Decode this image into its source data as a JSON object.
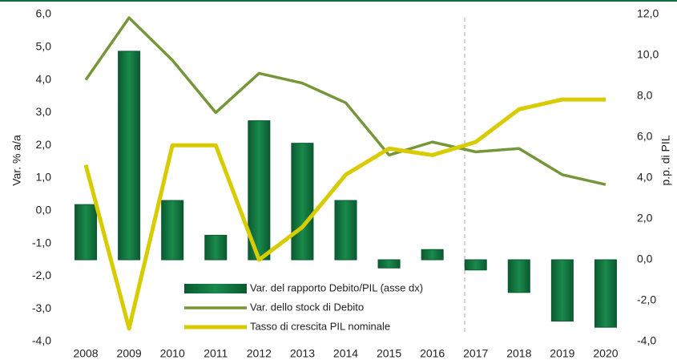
{
  "chart_data": {
    "type": "bar",
    "categories": [
      "2008",
      "2009",
      "2010",
      "2011",
      "2012",
      "2013",
      "2014",
      "2015",
      "2016",
      "2017",
      "2018",
      "2019",
      "2020"
    ],
    "series": [
      {
        "name": "Var. del rapporto Debito/PIL (asse dx)",
        "type": "bar",
        "axis": "y2",
        "color": "#0f6e3c",
        "values": [
          2.7,
          10.2,
          2.9,
          1.2,
          6.8,
          5.7,
          2.9,
          -0.4,
          0.5,
          -0.5,
          -1.6,
          -3.0,
          -3.3
        ]
      },
      {
        "name": "Var. dello stock di Debito",
        "type": "line",
        "color": "#76963a",
        "values": [
          4.0,
          5.9,
          4.6,
          3.0,
          4.2,
          3.9,
          3.3,
          1.7,
          2.1,
          1.8,
          1.9,
          1.1,
          0.8
        ]
      },
      {
        "name": "Tasso di crescita PIL nominale",
        "type": "line",
        "color": "#d8cc00",
        "values": [
          1.4,
          -3.6,
          2.0,
          2.0,
          -1.5,
          -0.5,
          1.1,
          1.9,
          1.7,
          2.1,
          3.1,
          3.4,
          3.4
        ]
      }
    ],
    "ylabel": "Var. % a/a",
    "y2label": "p.p. di PIL",
    "ylim": [
      -4,
      6
    ],
    "yticks": [
      {
        "value": 6,
        "label": "6,0"
      },
      {
        "value": 5,
        "label": "5,0"
      },
      {
        "value": 4,
        "label": "4,0"
      },
      {
        "value": 3,
        "label": "3,0"
      },
      {
        "value": 2,
        "label": "2,0"
      },
      {
        "value": 1,
        "label": "1,0"
      },
      {
        "value": 0,
        "label": "0,0"
      },
      {
        "value": -1,
        "label": "-1,0"
      },
      {
        "value": -2,
        "label": "-2,0"
      },
      {
        "value": -3,
        "label": "-3,0"
      },
      {
        "value": -4,
        "label": "-4,0"
      }
    ],
    "y2lim": [
      -4,
      12
    ],
    "y2ticks": [
      {
        "value": 12,
        "label": "12,0"
      },
      {
        "value": 10,
        "label": "10,0"
      },
      {
        "value": 8,
        "label": "8,0"
      },
      {
        "value": 6,
        "label": "6,0"
      },
      {
        "value": 4,
        "label": "4,0"
      },
      {
        "value": 2,
        "label": "2,0"
      },
      {
        "value": 0,
        "label": "0,0"
      },
      {
        "value": -2,
        "label": "-2,0"
      },
      {
        "value": -4,
        "label": "-4,0"
      }
    ],
    "grid": false
  }
}
